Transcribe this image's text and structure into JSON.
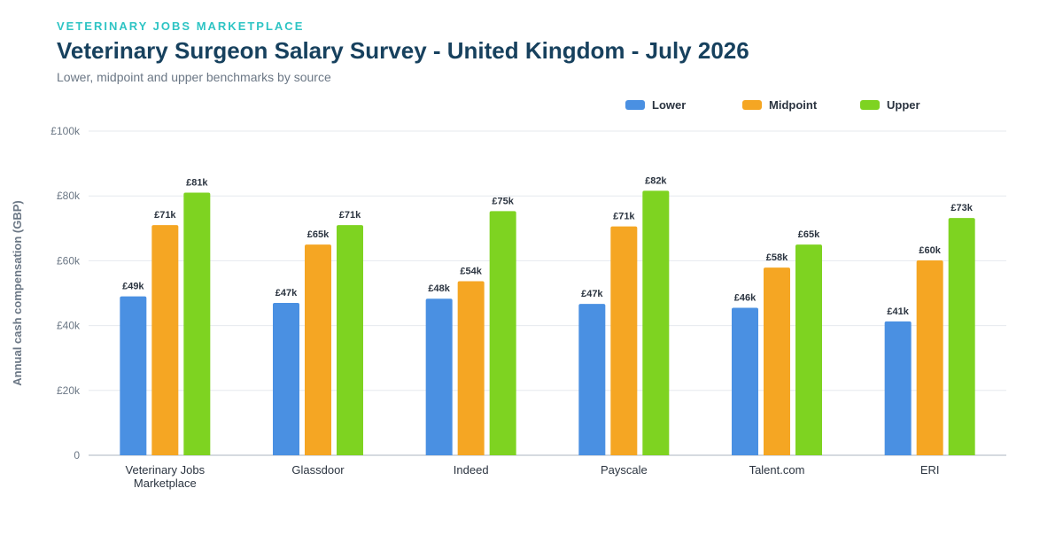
{
  "header": {
    "brand": "VETERINARY JOBS MARKETPLACE",
    "title": "Veterinary Surgeon Salary Survey - United Kingdom - July 2026",
    "subtitle": "Lower, midpoint and upper benchmarks by source"
  },
  "colors": {
    "lower": "#4a90e2",
    "midpoint": "#f5a623",
    "upper": "#7ed321",
    "grid": "#e6e9ee",
    "axis": "#c8ced6"
  },
  "chart_data": {
    "type": "bar",
    "title": "Veterinary Surgeon Salary Survey - United Kingdom - July 2026",
    "subtitle": "Lower, midpoint and upper benchmarks by source",
    "xlabel": "",
    "ylabel": "Annual cash compensation (GBP)",
    "ylim": [
      0,
      100000
    ],
    "yticks": [
      {
        "value": 0,
        "label": "0"
      },
      {
        "value": 20000,
        "label": "£20k"
      },
      {
        "value": 40000,
        "label": "£40k"
      },
      {
        "value": 60000,
        "label": "£60k"
      },
      {
        "value": 80000,
        "label": "£80k"
      },
      {
        "value": 100000,
        "label": "£100k"
      }
    ],
    "grid": true,
    "legend_position": "top-right",
    "categories": [
      [
        "Veterinary Jobs",
        "Marketplace"
      ],
      [
        "Glassdoor"
      ],
      [
        "Indeed"
      ],
      [
        "Payscale"
      ],
      [
        "Talent.com"
      ],
      [
        "ERI"
      ]
    ],
    "series": [
      {
        "name": "Lower",
        "color_key": "lower",
        "values": [
          49000,
          47000,
          48300,
          46700,
          45500,
          41300
        ],
        "labels": [
          "£49k",
          "£47k",
          "£48k",
          "£47k",
          "£46k",
          "£41k"
        ]
      },
      {
        "name": "Midpoint",
        "color_key": "midpoint",
        "values": [
          71000,
          65000,
          53700,
          70600,
          57900,
          60100
        ],
        "labels": [
          "£71k",
          "£65k",
          "£54k",
          "£71k",
          "£58k",
          "£60k"
        ]
      },
      {
        "name": "Upper",
        "color_key": "upper",
        "values": [
          81000,
          71000,
          75300,
          81600,
          65000,
          73200
        ],
        "labels": [
          "£81k",
          "£71k",
          "£75k",
          "£82k",
          "£65k",
          "£73k"
        ]
      }
    ]
  }
}
